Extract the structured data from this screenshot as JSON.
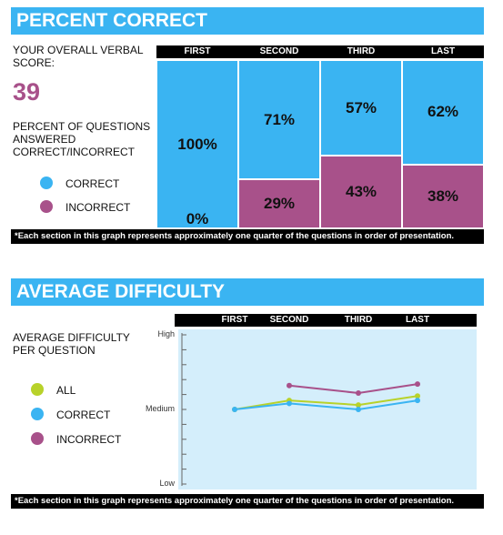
{
  "section1": {
    "banner_title": "PERCENT CORRECT",
    "score_label": "YOUR OVERALL VERBAL SCORE:",
    "score_value": "39",
    "question_label": "PERCENT OF QUESTIONS ANSWERED CORRECT/INCORRECT",
    "legend": [
      {
        "label": "CORRECT",
        "color": "#3ab4f2"
      },
      {
        "label": "INCORRECT",
        "color": "#a8518a"
      }
    ],
    "footnote": "*Each section in this graph represents approximately one quarter of the questions in order of presentation."
  },
  "section2": {
    "banner_title": "AVERAGE DIFFICULTY",
    "side_label": "AVERAGE DIFFICULTY PER QUESTION",
    "legend": [
      {
        "label": "ALL",
        "color": "#b8d22a"
      },
      {
        "label": "CORRECT",
        "color": "#3ab4f2"
      },
      {
        "label": "INCORRECT",
        "color": "#a8518a"
      }
    ],
    "footnote": "*Each section in this graph represents approximately one quarter of the questions in order of presentation."
  },
  "chart_data": [
    {
      "type": "bar",
      "title": "PERCENT CORRECT",
      "categories": [
        "FIRST",
        "SECOND",
        "THIRD",
        "LAST"
      ],
      "series": [
        {
          "name": "CORRECT",
          "color": "#3ab4f2",
          "values": [
            100,
            71,
            57,
            62
          ],
          "labels": [
            "100%",
            "71%",
            "57%",
            "62%"
          ]
        },
        {
          "name": "INCORRECT",
          "color": "#a8518a",
          "values": [
            0,
            29,
            43,
            38
          ],
          "labels": [
            "0%",
            "29%",
            "43%",
            "38%"
          ]
        }
      ],
      "stacked": true,
      "ylim": [
        0,
        100
      ]
    },
    {
      "type": "line",
      "title": "AVERAGE DIFFICULTY",
      "categories": [
        "FIRST",
        "SECOND",
        "THIRD",
        "LAST"
      ],
      "y_tick_labels": [
        "High",
        "Medium",
        "Low"
      ],
      "ylim": [
        0,
        10
      ],
      "series": [
        {
          "name": "ALL",
          "color": "#b8d22a",
          "values": [
            5.0,
            5.6,
            5.3,
            5.9
          ]
        },
        {
          "name": "CORRECT",
          "color": "#3ab4f2",
          "values": [
            5.0,
            5.4,
            5.0,
            5.6
          ]
        },
        {
          "name": "INCORRECT",
          "color": "#a8518a",
          "values": [
            null,
            6.6,
            6.1,
            6.7
          ]
        }
      ]
    }
  ]
}
